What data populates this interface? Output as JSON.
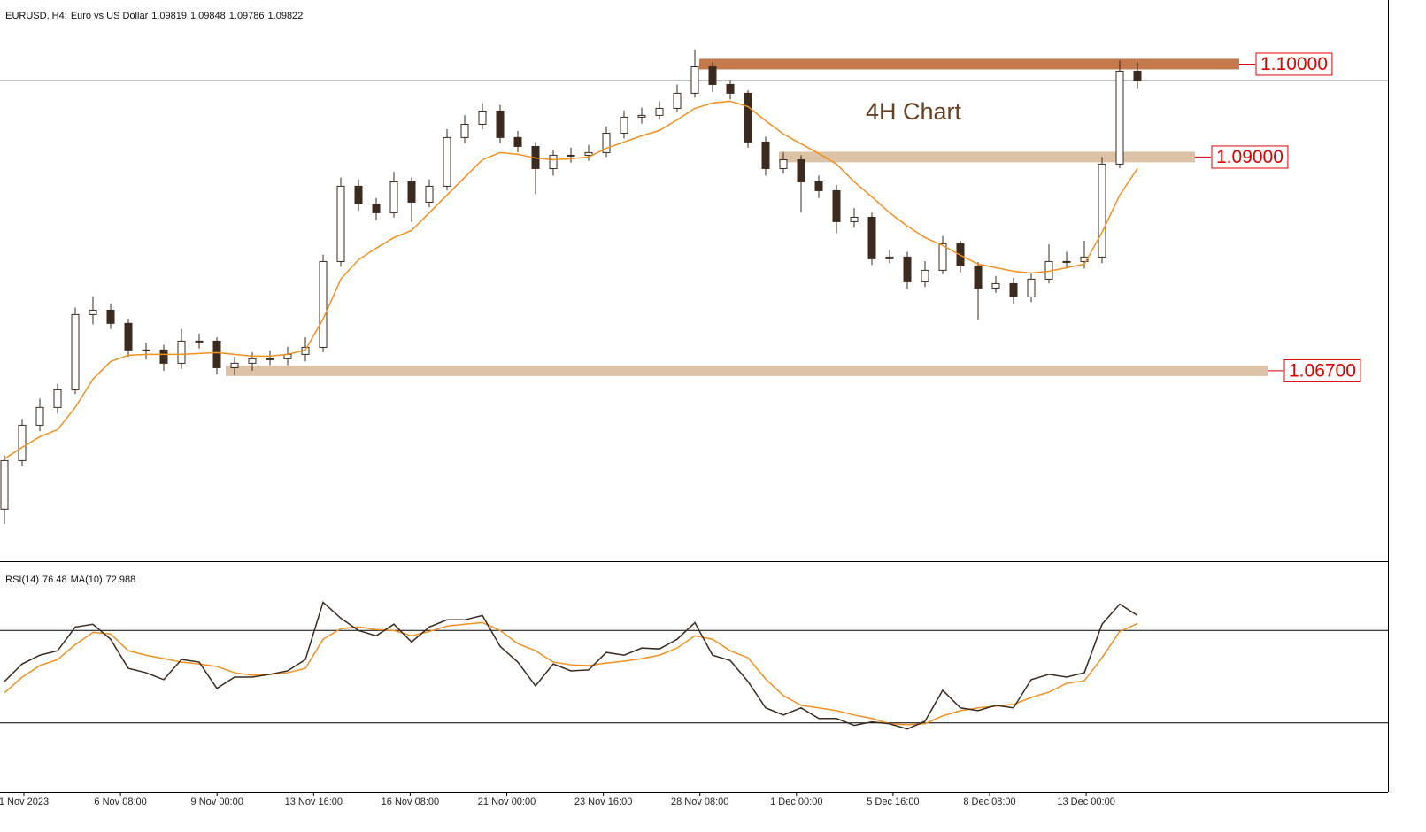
{
  "chart_data": [
    {
      "type": "candlestick",
      "title": "EURUSD, H4:",
      "subtitle": "Euro vs US Dollar",
      "quote": [
        1.09819,
        1.09848,
        1.09786,
        1.09822
      ],
      "annotation": "4H Chart",
      "up_color": "#ffffff",
      "down_color": "#3b2a1e",
      "open": [
        1.0521,
        1.05733,
        1.06114,
        1.06305,
        1.06495,
        1.07305,
        1.07352,
        1.0721,
        1.06924,
        1.06924,
        1.06781,
        1.07019,
        1.07019,
        1.06733,
        1.06781,
        1.06829,
        1.06829,
        1.06876,
        1.06952,
        1.07876,
        1.08686,
        1.08495,
        1.084,
        1.08733,
        1.08514,
        1.08686,
        1.0921,
        1.09352,
        1.09495,
        1.0921,
        1.09114,
        1.08876,
        1.09019,
        1.09019,
        1.09048,
        1.09257,
        1.09429,
        1.09448,
        1.09524,
        1.09686,
        1.09971,
        1.09781,
        1.09686,
        1.09162,
        1.08876,
        1.08971,
        1.08733,
        1.08638,
        1.08305,
        1.08352,
        1.07905,
        1.07924,
        1.07657,
        1.07781,
        1.08067,
        1.07829,
        1.0759,
        1.07638,
        1.07495,
        1.07686,
        1.07876,
        1.07876,
        1.07924,
        1.08924,
        1.09924
      ],
      "high": [
        1.0579,
        1.0618,
        1.064,
        1.0656,
        1.0738,
        1.075,
        1.0742,
        1.0726,
        1.07,
        1.0698,
        1.0715,
        1.071,
        1.0706,
        1.0685,
        1.069,
        1.0692,
        1.0696,
        1.0706,
        1.0795,
        1.0878,
        1.0876,
        1.0856,
        1.0884,
        1.0878,
        1.0876,
        1.093,
        1.0945,
        1.0958,
        1.0956,
        1.0928,
        1.0916,
        1.0908,
        1.091,
        1.0913,
        1.0933,
        1.095,
        1.0953,
        1.096,
        1.0978,
        1.1016,
        1.1002,
        1.0983,
        1.0972,
        1.0922,
        1.0905,
        1.0902,
        1.088,
        1.087,
        1.0845,
        1.084,
        1.08,
        1.0798,
        1.0788,
        1.0815,
        1.081,
        1.0787,
        1.0772,
        1.077,
        1.0776,
        1.0806,
        1.0798,
        1.081,
        1.09,
        1.1004,
        1.1002
      ],
      "low": [
        1.0505,
        1.0568,
        1.0605,
        1.0624,
        1.0645,
        1.072,
        1.0715,
        1.0685,
        1.0682,
        1.067,
        1.0672,
        1.0694,
        1.0666,
        1.0665,
        1.067,
        1.0676,
        1.0676,
        1.068,
        1.069,
        1.0782,
        1.0842,
        1.0832,
        1.0835,
        1.083,
        1.0846,
        1.0864,
        1.0915,
        1.093,
        1.0915,
        1.0905,
        1.086,
        1.088,
        1.0894,
        1.0896,
        1.09,
        1.092,
        1.0936,
        1.094,
        1.0948,
        1.0964,
        1.097,
        1.0962,
        1.091,
        1.088,
        1.0882,
        1.084,
        1.0856,
        1.0818,
        1.0824,
        1.0784,
        1.0786,
        1.0758,
        1.076,
        1.0774,
        1.0776,
        1.0725,
        1.0754,
        1.0742,
        1.0744,
        1.0764,
        1.078,
        1.078,
        1.0786,
        1.0888,
        1.0974
      ],
      "close": [
        1.05733,
        1.06114,
        1.06305,
        1.06495,
        1.07305,
        1.07352,
        1.0721,
        1.06924,
        1.06924,
        1.06781,
        1.07019,
        1.07019,
        1.06733,
        1.06781,
        1.06829,
        1.06829,
        1.06876,
        1.06952,
        1.07876,
        1.08686,
        1.08495,
        1.084,
        1.08733,
        1.08514,
        1.08686,
        1.0921,
        1.09352,
        1.09495,
        1.0921,
        1.09114,
        1.08876,
        1.09019,
        1.09019,
        1.09048,
        1.09257,
        1.09429,
        1.09448,
        1.09524,
        1.09686,
        1.09971,
        1.09781,
        1.09686,
        1.09162,
        1.08876,
        1.08971,
        1.08733,
        1.08638,
        1.08305,
        1.08352,
        1.07905,
        1.07924,
        1.07657,
        1.07781,
        1.08067,
        1.07829,
        1.0759,
        1.07638,
        1.07495,
        1.07686,
        1.07876,
        1.07876,
        1.07924,
        1.08924,
        1.09924,
        1.09822
      ],
      "ma": {
        "color": "#f39020",
        "values": [
          1.05752,
          1.05876,
          1.0599,
          1.06067,
          1.06305,
          1.0661,
          1.068,
          1.06867,
          1.06876,
          1.06876,
          1.06876,
          1.06886,
          1.06895,
          1.06876,
          1.06857,
          1.06857,
          1.06876,
          1.06924,
          1.07257,
          1.07686,
          1.07895,
          1.08019,
          1.08133,
          1.0821,
          1.084,
          1.0859,
          1.08781,
          1.08971,
          1.09048,
          1.09029,
          1.0899,
          1.08971,
          1.08981,
          1.09,
          1.09095,
          1.09162,
          1.09229,
          1.09286,
          1.094,
          1.09524,
          1.09581,
          1.096,
          1.09543,
          1.0939,
          1.09248,
          1.09143,
          1.09038,
          1.08924,
          1.08733,
          1.08571,
          1.084,
          1.08257,
          1.08133,
          1.08048,
          1.07943,
          1.07848,
          1.0781,
          1.07771,
          1.07752,
          1.07771,
          1.0781,
          1.07848,
          1.0819,
          1.0859,
          1.08876
        ]
      },
      "ylim": [
        1.0467,
        1.1069
      ],
      "levels": [
        {
          "value": 1.1,
          "label": "1.10000",
          "color": "#c47a4c"
        },
        {
          "value": 1.09,
          "label": "1.09000",
          "color": "#dcc3a8"
        },
        {
          "value": 1.067,
          "label": "1.06700",
          "color": "#dcc3a8"
        }
      ]
    },
    {
      "type": "line",
      "title": "RSI(14)",
      "ma_title": "MA(10)",
      "color": "#3b2a1e",
      "ma_color": "#f39020",
      "values": [
        47.9,
        55.5,
        59.3,
        61.2,
        71.5,
        72.7,
        66.2,
        53.6,
        51.7,
        48.7,
        57.4,
        56.3,
        44.9,
        49.8,
        49.8,
        51.0,
        52.5,
        57.4,
        82.2,
        75.3,
        70.0,
        67.7,
        72.7,
        65.0,
        71.5,
        74.6,
        74.6,
        76.5,
        63.1,
        56.3,
        46.0,
        55.5,
        52.5,
        52.9,
        60.5,
        59.3,
        62.4,
        62.0,
        66.2,
        73.4,
        59.3,
        57.0,
        47.9,
        36.5,
        33.4,
        36.5,
        31.9,
        31.9,
        28.9,
        30.4,
        29.6,
        27.3,
        30.7,
        44.1,
        36.5,
        35.3,
        37.6,
        36.5,
        48.7,
        51.0,
        49.8,
        51.7,
        72.7,
        81.4,
        76.48
      ],
      "ma_values": [
        43.0,
        49.8,
        54.8,
        57.4,
        63.9,
        69.2,
        68.5,
        61.2,
        59.3,
        57.8,
        56.3,
        55.5,
        54.4,
        51.7,
        50.6,
        51.0,
        51.7,
        53.6,
        66.2,
        70.8,
        71.5,
        70.4,
        70.0,
        67.7,
        69.6,
        71.9,
        72.7,
        73.4,
        70.0,
        64.3,
        61.2,
        56.3,
        55.1,
        54.8,
        55.9,
        56.7,
        57.8,
        59.3,
        62.4,
        67.7,
        66.2,
        61.2,
        58.2,
        49.0,
        41.8,
        37.6,
        36.5,
        35.3,
        33.4,
        31.9,
        29.6,
        29.2,
        29.6,
        33.0,
        35.3,
        36.5,
        37.2,
        38.0,
        41.0,
        43.3,
        47.1,
        48.2,
        58.2,
        69.6,
        72.988
      ],
      "ylim": [
        0,
        100
      ],
      "levels": [
        70,
        30
      ],
      "x_labels": [
        "1 Nov 2023",
        "6 Nov 08:00",
        "9 Nov 00:00",
        "13 Nov 16:00",
        "16 Nov 08:00",
        "21 Nov 00:00",
        "23 Nov 16:00",
        "28 Nov 08:00",
        "1 Dec 00:00",
        "5 Dec 16:00",
        "8 Dec 08:00",
        "13 Dec 00:00"
      ]
    }
  ]
}
